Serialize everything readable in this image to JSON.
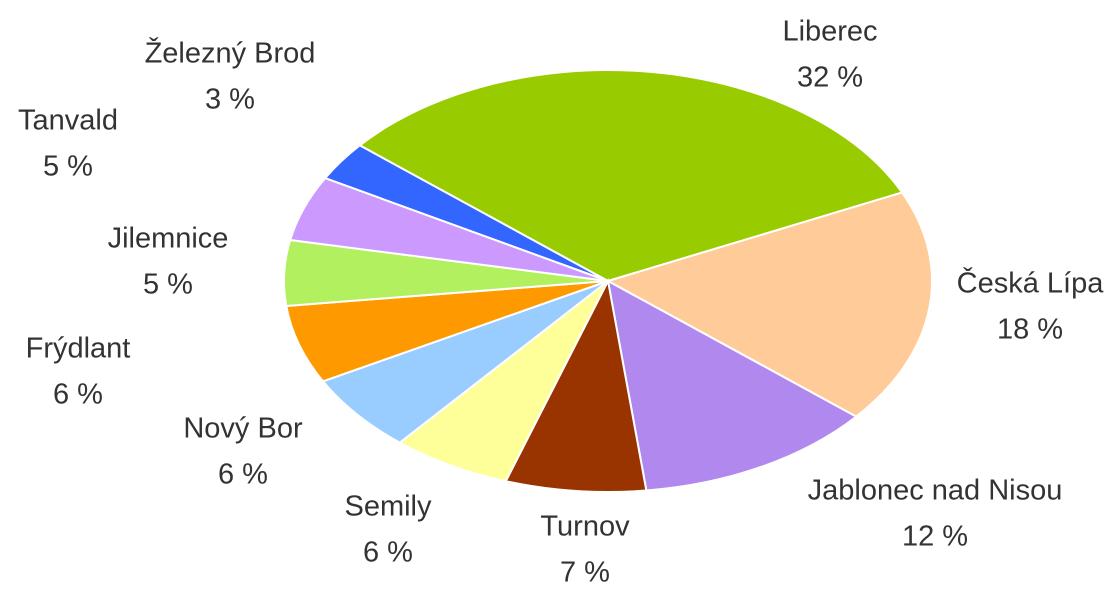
{
  "chart_data": {
    "type": "pie",
    "categories": [
      "Liberec",
      "Česká Lípa",
      "Jablonec nad Nisou",
      "Turnov",
      "Semily",
      "Nový Bor",
      "Frýdlant",
      "Jilemnice",
      "Tanvald",
      "Železný Brod"
    ],
    "values": [
      32,
      18,
      12,
      7,
      6,
      6,
      6,
      5,
      5,
      3
    ],
    "value_labels": [
      "32 %",
      "18 %",
      "12 %",
      "7 %",
      "6 %",
      "6 %",
      "6 %",
      "5 %",
      "5 %",
      "3 %"
    ],
    "colors": [
      "#99cc00",
      "#ffcc99",
      "#b088ee",
      "#993300",
      "#ffff99",
      "#99ccff",
      "#ff9900",
      "#b2f060",
      "#cc99ff",
      "#3366ff"
    ]
  }
}
